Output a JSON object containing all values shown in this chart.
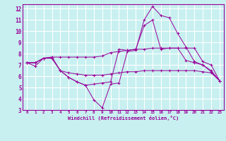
{
  "xlabel": "Windchill (Refroidissement éolien,°C)",
  "bg_color": "#c8f0f0",
  "line_color": "#990099",
  "grid_color": "#ffffff",
  "xlim": [
    -0.5,
    23.5
  ],
  "ylim": [
    3,
    12.4
  ],
  "xticks": [
    0,
    1,
    2,
    3,
    4,
    5,
    6,
    7,
    8,
    9,
    10,
    11,
    12,
    13,
    14,
    15,
    16,
    17,
    18,
    19,
    20,
    21,
    22,
    23
  ],
  "yticks": [
    3,
    4,
    5,
    6,
    7,
    8,
    9,
    10,
    11,
    12
  ],
  "lines": [
    [
      7.2,
      6.9,
      7.6,
      7.6,
      6.5,
      5.9,
      5.5,
      5.2,
      3.9,
      3.2,
      5.3,
      5.4,
      8.2,
      8.3,
      11.0,
      12.2,
      11.4,
      11.2,
      9.8,
      8.6,
      7.3,
      7.0,
      6.4,
      5.6
    ],
    [
      7.2,
      7.2,
      7.6,
      7.7,
      7.7,
      7.7,
      7.7,
      7.7,
      7.7,
      7.8,
      8.1,
      8.2,
      8.3,
      8.4,
      8.4,
      8.5,
      8.5,
      8.5,
      8.5,
      8.5,
      8.5,
      7.3,
      7.0,
      5.6
    ],
    [
      7.2,
      7.2,
      7.6,
      7.6,
      6.5,
      6.3,
      6.2,
      6.1,
      6.1,
      6.1,
      6.2,
      6.3,
      6.4,
      6.4,
      6.5,
      6.5,
      6.5,
      6.5,
      6.5,
      6.5,
      6.5,
      6.4,
      6.3,
      5.6
    ],
    [
      7.2,
      7.2,
      7.6,
      7.7,
      6.5,
      5.9,
      5.5,
      5.2,
      5.3,
      5.4,
      5.5,
      8.4,
      8.3,
      8.4,
      10.5,
      11.0,
      8.4,
      8.5,
      8.5,
      7.4,
      7.2,
      7.0,
      6.5,
      5.6
    ]
  ]
}
